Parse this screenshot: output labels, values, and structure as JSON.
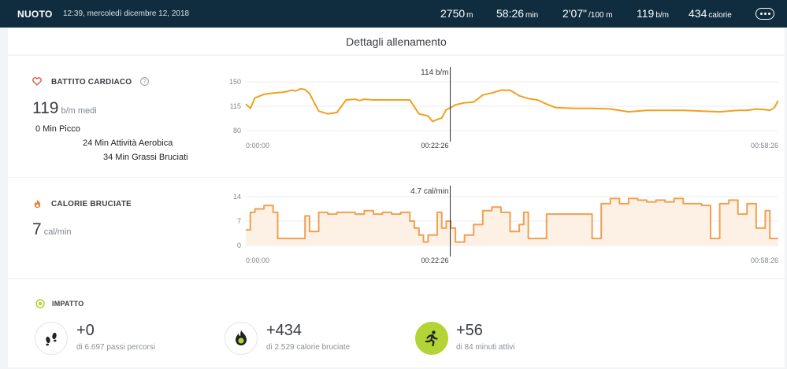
{
  "header": {
    "sport": "NUOTO",
    "date": "12:39, mercoledì dicembre 12, 2018",
    "stats": [
      {
        "value": "2750",
        "unit": "m"
      },
      {
        "value": "58:26",
        "unit": "min"
      },
      {
        "value": "2'07\"",
        "unit": "/100 m"
      },
      {
        "value": "119",
        "unit": "b/m"
      },
      {
        "value": "434",
        "unit": "calorie"
      }
    ]
  },
  "details_title": "Dettagli allenamento",
  "heart": {
    "title": "BATTITO CARDIACO",
    "help": "?",
    "avg_value": "119",
    "avg_unit": "b/m medi",
    "zones": [
      "0 Min Picco",
      "24 Min Attività Aerobica",
      "34 Min Grassi Bruciati"
    ]
  },
  "calories": {
    "title": "CALORIE BRUCIATE",
    "value": "7",
    "unit": "cal/min"
  },
  "impact": {
    "title": "IMPATTO",
    "items": [
      {
        "value": "+0",
        "label": "di 6.697 passi percorsi",
        "icon": "footsteps-icon"
      },
      {
        "value": "+434",
        "label": "di 2.529 calorie bruciate",
        "icon": "flame-icon"
      },
      {
        "value": "+56",
        "label": "di 84 minuti attivi",
        "icon": "running-person-icon"
      }
    ]
  },
  "colors": {
    "line": "#f0a020",
    "calories_line": "#f0a050",
    "calories_fill": "#fdf1e6",
    "topbar": "#0f2d3f",
    "accent_green": "#b4d334"
  },
  "chart_data": [
    {
      "type": "line",
      "title": "",
      "xlabel": "",
      "ylabel": "b/m",
      "ylim": [
        80,
        150
      ],
      "yticks": [
        80,
        115,
        150
      ],
      "x_tick_labels": [
        "0:00:00",
        "00:58:26"
      ],
      "marker": {
        "time": "00:22:26",
        "label": "114 b/m"
      },
      "x_min": [
        0,
        0.5,
        1,
        2,
        3,
        4,
        4.5,
        5,
        5.5,
        6,
        6.5,
        7,
        8,
        9,
        10,
        11,
        12,
        12.5,
        13,
        14,
        15,
        16,
        17,
        18,
        19,
        20,
        20.5,
        21,
        21.5,
        22,
        22.5,
        23,
        24,
        25,
        26,
        27,
        28,
        29,
        30,
        31,
        32,
        33,
        34,
        36,
        38,
        40,
        42,
        44,
        46,
        48,
        50,
        52,
        54,
        55,
        56,
        57,
        57.5,
        58,
        58.4
      ],
      "y": [
        118,
        112,
        127,
        132,
        134,
        135,
        136,
        138,
        137,
        140,
        139,
        133,
        108,
        104,
        106,
        124,
        125,
        123,
        125,
        124,
        124,
        124,
        124,
        124,
        104,
        101,
        93,
        96,
        98,
        110,
        113,
        117,
        120,
        121,
        131,
        134,
        138,
        138,
        130,
        126,
        124,
        118,
        113,
        112,
        112,
        111,
        107,
        109,
        109,
        109,
        108,
        107,
        109,
        109,
        111,
        110,
        109,
        113,
        123
      ]
    },
    {
      "type": "area",
      "title": "",
      "xlabel": "",
      "ylabel": "cal/min",
      "ylim": [
        0,
        14
      ],
      "yticks": [
        0,
        7,
        14
      ],
      "x_tick_labels": [
        "0:00:00",
        "00:58:26"
      ],
      "marker": {
        "time": "00:22:26",
        "label": "4.7 cal/min"
      },
      "x_min": [
        0,
        0.5,
        1,
        2,
        3,
        3.5,
        6,
        6.5,
        7,
        8,
        9,
        10,
        12,
        13,
        14,
        15,
        16,
        17,
        18,
        18.5,
        19,
        19.5,
        20,
        21,
        21.5,
        22,
        22.5,
        23,
        24,
        25,
        26,
        27,
        28,
        29,
        30,
        30.5,
        31,
        33,
        38,
        39,
        40,
        41,
        42,
        43,
        44,
        45,
        46,
        47,
        48,
        49,
        50,
        51,
        52,
        53,
        54,
        55,
        56,
        57,
        57.5,
        58.4
      ],
      "y": [
        4.5,
        9.5,
        10.5,
        11.5,
        9.5,
        2,
        2,
        8.5,
        4,
        9.5,
        9,
        9.5,
        9,
        10,
        9,
        9.5,
        9,
        9.5,
        7,
        5,
        3,
        1,
        3,
        9.5,
        5,
        7,
        5,
        1,
        3,
        6,
        10,
        11,
        9.5,
        4,
        6,
        9.5,
        2,
        9,
        2,
        12,
        13.5,
        12,
        13.5,
        13,
        12.5,
        13,
        12.5,
        13.5,
        12,
        12,
        11.5,
        2,
        12,
        13,
        9,
        12,
        5,
        10,
        2,
        2
      ]
    }
  ]
}
